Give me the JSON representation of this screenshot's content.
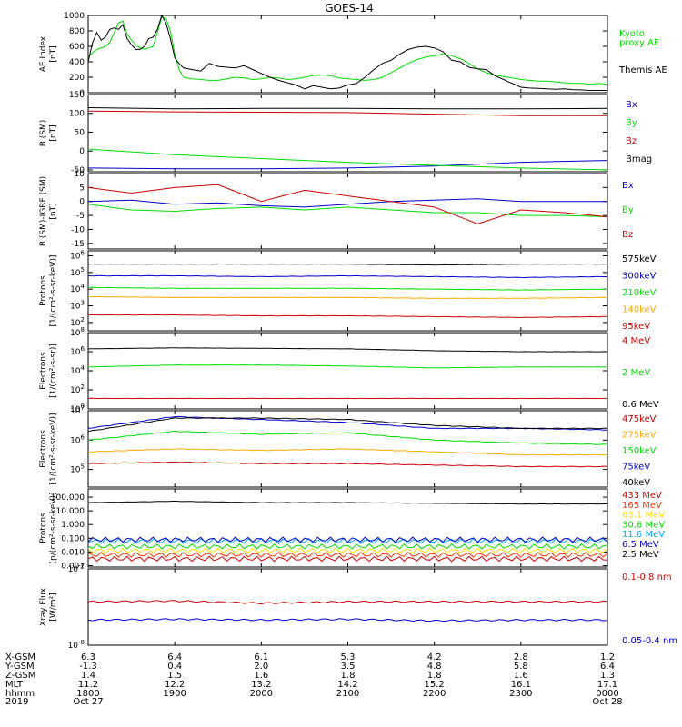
{
  "title": "GOES-14",
  "chart_data": [
    {
      "type": "line",
      "ylabel": [
        "AE Index",
        "[nT]"
      ],
      "yticks": [
        "1000",
        "800",
        "600",
        "400",
        "200",
        "0"
      ],
      "ylim": [
        0,
        1000
      ],
      "series": [
        {
          "name": "Kyoto proxy AE",
          "color": "#00dd00",
          "x": [
            0,
            0.05,
            0.1,
            0.15,
            0.2,
            0.25,
            0.3,
            0.35,
            0.4,
            0.45,
            0.5,
            0.55,
            0.6,
            0.65,
            0.7,
            0.75,
            0.8,
            0.85,
            0.9,
            0.95,
            1.0,
            1.05,
            1.1,
            1.2,
            1.3,
            1.4,
            1.5,
            1.6,
            1.7,
            1.8,
            1.9,
            2.0,
            2.1,
            2.2,
            2.3,
            2.4,
            2.5,
            2.6,
            2.7,
            2.8,
            2.9,
            3.0,
            3.1,
            3.2,
            3.3,
            3.4,
            3.5,
            3.6,
            3.7,
            3.8,
            3.9,
            4.0,
            4.1,
            4.2,
            4.3,
            4.4,
            4.5,
            4.6,
            4.7,
            4.8,
            4.9,
            5.0,
            5.1,
            5.2,
            5.3,
            5.4,
            5.5,
            5.6,
            5.7,
            5.8,
            5.9,
            6.0
          ],
          "y": [
            450,
            520,
            560,
            580,
            600,
            650,
            780,
            900,
            930,
            760,
            680,
            620,
            580,
            560,
            580,
            600,
            780,
            980,
            960,
            800,
            500,
            300,
            200,
            180,
            170,
            160,
            160,
            180,
            200,
            190,
            170,
            180,
            200,
            190,
            170,
            180,
            200,
            220,
            230,
            220,
            190,
            180,
            170,
            160,
            170,
            200,
            260,
            320,
            380,
            430,
            460,
            480,
            500,
            480,
            440,
            380,
            310,
            260,
            230,
            210,
            190,
            170,
            160,
            150,
            150,
            140,
            130,
            120,
            120,
            110,
            120,
            110
          ]
        },
        {
          "name": "Themis AE",
          "color": "#000000",
          "x": [
            0,
            0.05,
            0.1,
            0.15,
            0.2,
            0.25,
            0.3,
            0.35,
            0.4,
            0.45,
            0.5,
            0.55,
            0.6,
            0.65,
            0.7,
            0.75,
            0.8,
            0.85,
            0.9,
            0.95,
            1.0,
            1.05,
            1.1,
            1.2,
            1.3,
            1.4,
            1.5,
            1.6,
            1.7,
            1.8,
            1.9,
            2.0,
            2.1,
            2.2,
            2.3,
            2.4,
            2.5,
            2.6,
            2.7,
            2.8,
            2.9,
            3.0,
            3.1,
            3.2,
            3.3,
            3.4,
            3.5,
            3.6,
            3.7,
            3.8,
            3.9,
            4.0,
            4.1,
            4.2,
            4.3,
            4.4,
            4.5,
            4.6,
            4.7,
            4.8,
            4.9,
            5.0,
            5.1,
            5.2,
            5.3,
            5.4,
            5.5,
            5.6,
            5.7,
            5.8,
            5.9,
            6.0
          ],
          "y": [
            400,
            650,
            780,
            680,
            720,
            820,
            840,
            820,
            880,
            700,
            620,
            560,
            560,
            600,
            700,
            720,
            820,
            1000,
            900,
            700,
            450,
            380,
            320,
            300,
            280,
            380,
            340,
            330,
            320,
            350,
            300,
            250,
            200,
            160,
            130,
            100,
            50,
            90,
            70,
            50,
            60,
            100,
            120,
            200,
            300,
            380,
            420,
            500,
            560,
            590,
            600,
            580,
            530,
            420,
            400,
            330,
            310,
            300,
            220,
            170,
            120,
            70,
            60,
            55,
            50,
            45,
            50,
            40,
            35,
            30,
            30,
            30
          ]
        }
      ]
    },
    {
      "type": "line",
      "ylabel": [
        "B (SM)",
        "[nT]"
      ],
      "yticks": [
        "150",
        "100",
        "50",
        "0",
        "-50"
      ],
      "ylim": [
        -55,
        150
      ],
      "series": [
        {
          "name": "Bx",
          "color": "#0000cc",
          "x": [
            0,
            1,
            2,
            3,
            4,
            5,
            6
          ],
          "y": [
            -45,
            -47,
            -47,
            -45,
            -40,
            -30,
            -25
          ]
        },
        {
          "name": "By",
          "color": "#00dd00",
          "x": [
            0,
            1,
            2,
            3,
            4,
            5,
            6
          ],
          "y": [
            5,
            -10,
            -20,
            -30,
            -38,
            -45,
            -50
          ]
        },
        {
          "name": "Bz",
          "color": "#cc0000",
          "x": [
            0,
            1,
            2,
            3,
            4,
            5,
            6
          ],
          "y": [
            106,
            104,
            103,
            102,
            98,
            94,
            94
          ]
        },
        {
          "name": "Bmag",
          "color": "#000000",
          "x": [
            0,
            1,
            2,
            3,
            4,
            5,
            6
          ],
          "y": [
            115,
            112,
            113,
            113,
            112,
            112,
            113
          ]
        }
      ]
    },
    {
      "type": "line",
      "ylabel": [
        "B (SM)-IGRF (SM)",
        "[nT]"
      ],
      "yticks": [
        "10",
        "5",
        "0",
        "-5",
        "-10",
        "-15"
      ],
      "ylim": [
        -17,
        10
      ],
      "series": [
        {
          "name": "Bx",
          "color": "#0000cc",
          "x": [
            0,
            0.5,
            1,
            1.5,
            2,
            2.5,
            3,
            3.5,
            4,
            4.5,
            5,
            5.5,
            6
          ],
          "y": [
            0,
            0.5,
            -1,
            -0.5,
            -1.5,
            -2,
            -1,
            0,
            0.5,
            1,
            0,
            0,
            0
          ]
        },
        {
          "name": "By",
          "color": "#00dd00",
          "x": [
            0,
            0.5,
            1,
            1.5,
            2,
            2.5,
            3,
            3.5,
            4,
            4.5,
            5,
            5.5,
            6
          ],
          "y": [
            -1,
            -3,
            -3.5,
            -2.5,
            -2,
            -3,
            -2,
            -3,
            -4,
            -4,
            -5,
            -5,
            -5.5
          ]
        },
        {
          "name": "Bz",
          "color": "#cc0000",
          "x": [
            0,
            0.5,
            1,
            1.5,
            2,
            2.5,
            3,
            3.5,
            4,
            4.5,
            5,
            5.5,
            6
          ],
          "y": [
            5,
            3,
            5,
            6,
            0,
            4,
            2,
            0,
            -2,
            -8,
            -3,
            -4,
            -5.5
          ]
        }
      ]
    },
    {
      "type": "line",
      "ylabel": [
        "Protons",
        "[1/(cm²-s-sr-keV)]"
      ],
      "yscale": "log",
      "yticks": [
        "10^6",
        "10^5",
        "10^4",
        "10^3",
        "10^2"
      ],
      "ylim_log10": [
        1.5,
        6.3
      ],
      "series": [
        {
          "name": "575keV",
          "color": "#000000",
          "log10_values": [
            5.5,
            5.5,
            5.5,
            5.5,
            5.45,
            5.5,
            5.5
          ]
        },
        {
          "name": "300keV",
          "color": "#0000cc",
          "log10_values": [
            4.8,
            4.8,
            4.75,
            4.8,
            4.75,
            4.7,
            4.75
          ]
        },
        {
          "name": "210keV",
          "color": "#00dd00",
          "log10_values": [
            4.1,
            4.05,
            4.05,
            4.05,
            4.0,
            3.95,
            4.0
          ]
        },
        {
          "name": "140keV",
          "color": "#ffaa00",
          "log10_values": [
            3.55,
            3.5,
            3.5,
            3.5,
            3.45,
            3.45,
            3.5
          ]
        },
        {
          "name": "95keV",
          "color": "#cc0000",
          "log10_values": [
            2.45,
            2.45,
            2.4,
            2.4,
            2.35,
            2.3,
            2.35
          ]
        }
      ]
    },
    {
      "type": "line",
      "ylabel": [
        "Electrons",
        "[1/(cm²-s-sr)]"
      ],
      "yscale": "log",
      "yticks": [
        "10^8",
        "10^6",
        "10^4",
        "10^2",
        "10^0"
      ],
      "ylim_log10": [
        0,
        8
      ],
      "series": [
        {
          "name": "4 MeV",
          "color": "#cc0000",
          "log10_values": [
            1.1,
            1.1,
            1.1,
            1.1,
            1.1,
            1.1,
            1.1
          ]
        },
        {
          "name": "2 MeV",
          "color": "#00dd00",
          "log10_values": [
            4.4,
            4.6,
            4.6,
            4.5,
            4.3,
            4.4,
            4.4
          ]
        },
        {
          "name": "0.6 MeV",
          "color": "#000000",
          "log10_values": [
            6.3,
            6.4,
            6.35,
            6.3,
            6.1,
            6.0,
            6.0
          ]
        }
      ]
    },
    {
      "type": "line",
      "ylabel": [
        "Electrons",
        "[1/(cm²-s-sr-keV)]"
      ],
      "yscale": "log",
      "yticks": [
        "10^7",
        "10^6",
        "10^5"
      ],
      "ylim_log10": [
        4.4,
        7
      ],
      "series": [
        {
          "name": "475keV",
          "color": "#cc0000",
          "log10_values": [
            5.2,
            5.25,
            5.2,
            5.2,
            5.15,
            5.1,
            5.1
          ]
        },
        {
          "name": "275keV",
          "color": "#ffaa00",
          "log10_values": [
            5.6,
            5.7,
            5.65,
            5.7,
            5.6,
            5.5,
            5.5
          ]
        },
        {
          "name": "150keV",
          "color": "#00dd00",
          "log10_values": [
            6.0,
            6.3,
            6.2,
            6.25,
            6.0,
            5.9,
            5.85
          ]
        },
        {
          "name": "75keV",
          "color": "#0000cc",
          "log10_values": [
            6.4,
            6.8,
            6.7,
            6.6,
            6.4,
            6.4,
            6.35
          ]
        },
        {
          "name": "40keV",
          "color": "#000000",
          "log10_values": [
            6.3,
            6.75,
            6.75,
            6.7,
            6.5,
            6.4,
            6.4
          ]
        }
      ]
    },
    {
      "type": "line",
      "ylabel": [
        "Protons",
        "[p/(cm²-s-sr-keV)]"
      ],
      "yscale": "log",
      "yticks": [
        "100.000",
        "10.000",
        "1.000",
        "0.100",
        "0.010",
        "0.001"
      ],
      "ylim_log10": [
        -3.1,
        2.6
      ],
      "series": [
        {
          "name": "433 MeV",
          "color": "#cc0000",
          "log10_values": [
            -2.5,
            -2.5,
            -2.5,
            -2.5,
            -2.5,
            -2.5,
            -2.5
          ]
        },
        {
          "name": "165 MeV",
          "color": "#ff3300",
          "log10_values": [
            -2.2,
            -2.2,
            -2.2,
            -2.2,
            -2.2,
            -2.2,
            -2.2
          ]
        },
        {
          "name": "63.1 MeV",
          "color": "#ffdd00",
          "log10_values": [
            -1.9,
            -1.9,
            -1.9,
            -1.9,
            -1.9,
            -1.9,
            -1.9
          ]
        },
        {
          "name": "30.6 MeV",
          "color": "#00dd00",
          "log10_values": [
            -1.6,
            -1.6,
            -1.6,
            -1.6,
            -1.6,
            -1.6,
            -1.6
          ]
        },
        {
          "name": "11.6 MeV",
          "color": "#00aaff",
          "log10_values": [
            -1.2,
            -1.2,
            -1.2,
            -1.2,
            -1.2,
            -1.2,
            -1.2
          ]
        },
        {
          "name": "6.5 MeV",
          "color": "#0000cc",
          "log10_values": [
            -1.1,
            -1.1,
            -1.1,
            -1.1,
            -1.1,
            -1.1,
            -1.1
          ]
        },
        {
          "name": "2.5 MeV",
          "color": "#000000",
          "log10_values": [
            1.6,
            1.7,
            1.6,
            1.6,
            1.55,
            1.5,
            1.5
          ]
        }
      ]
    },
    {
      "type": "line",
      "ylabel": [
        "Xray Flux",
        "[W/m²]"
      ],
      "yscale": "log",
      "yticks": [
        "10^-7",
        "10^-8"
      ],
      "ylim_log10": [
        -8,
        -7
      ],
      "series": [
        {
          "name": "0.1-0.8 nm",
          "color": "#cc0000",
          "log10_values": [
            -7.43,
            -7.42,
            -7.45,
            -7.43,
            -7.43,
            -7.43,
            -7.43
          ]
        },
        {
          "name": "0.05-0.4 nm",
          "color": "#0000cc",
          "log10_values": [
            -7.67,
            -7.66,
            -7.67,
            -7.66,
            -7.68,
            -7.67,
            -7.67
          ]
        }
      ]
    }
  ],
  "xaxis": {
    "hours": [
      "1800",
      "1900",
      "2000",
      "2100",
      "2200",
      "2300",
      "0000"
    ],
    "rows": [
      {
        "label": "X-GSM",
        "values": [
          "6.3",
          "6.4",
          "6.1",
          "5.3",
          "4.2",
          "2.8",
          "1.2"
        ]
      },
      {
        "label": "Y-GSM",
        "values": [
          "-1.3",
          "0.4",
          "2.0",
          "3.5",
          "4.8",
          "5.8",
          "6.4"
        ]
      },
      {
        "label": "Z-GSM",
        "values": [
          "1.4",
          "1.5",
          "1.6",
          "1.8",
          "1.8",
          "1.6",
          "1.3"
        ]
      },
      {
        "label": "MLT",
        "values": [
          "11.2",
          "12.2",
          "13.2",
          "14.2",
          "15.2",
          "16.1",
          "17.1"
        ]
      },
      {
        "label": "hhmm",
        "values": [
          "1800",
          "1900",
          "2000",
          "2100",
          "2200",
          "2300",
          "0000"
        ]
      },
      {
        "label": "2019",
        "values": [
          "Oct 27",
          "",
          "",
          "",
          "",
          "",
          "Oct 28"
        ]
      }
    ]
  },
  "legend": {
    "ae": [
      "Kyoto",
      "proxy AE",
      "Themis AE"
    ]
  }
}
